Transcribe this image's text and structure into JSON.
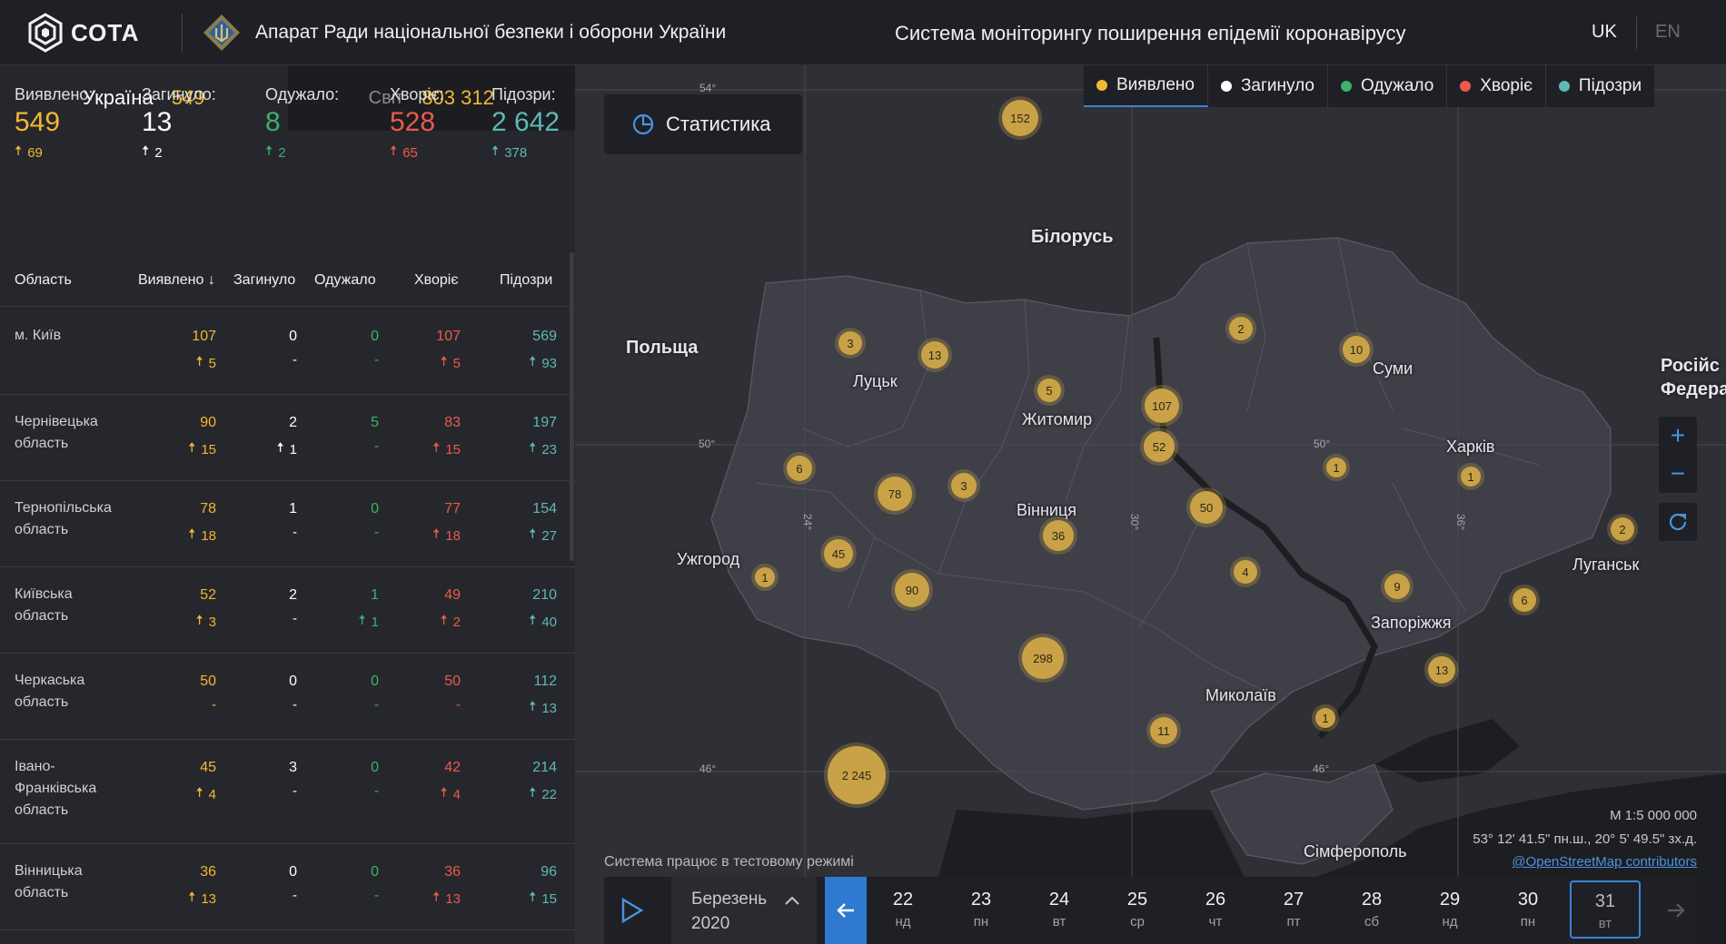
{
  "header": {
    "logo_text": "СОТА",
    "org_title": "Апарат Ради національної безпеки і оборони України",
    "system_title": "Система моніторингу поширення епідемії коронавірусу",
    "lang_uk": "UK",
    "lang_en": "EN"
  },
  "tabs": {
    "ukraine_label": "Україна",
    "ukraine_value": "549",
    "world_label": "Світ",
    "world_value": "803 312"
  },
  "summary": {
    "detected": {
      "label": "Виявлено:",
      "value": "549",
      "delta": "69"
    },
    "died": {
      "label": "Загинуло:",
      "value": "13",
      "delta": "2"
    },
    "recovered": {
      "label": "Одужало:",
      "value": "8",
      "delta": "2"
    },
    "sick": {
      "label": "Хворіє:",
      "value": "528",
      "delta": "65"
    },
    "suspected": {
      "label": "Підозри:",
      "value": "2 642",
      "delta": "378"
    }
  },
  "table": {
    "headers": [
      "Область",
      "Виявлено",
      "Загинуло",
      "Одужало",
      "Хворіє",
      "Підозри"
    ],
    "rows": [
      {
        "name": "м. Київ",
        "detected": "107",
        "detected_d": "5",
        "died": "0",
        "died_d": "-",
        "recovered": "0",
        "recovered_d": "-",
        "sick": "107",
        "sick_d": "5",
        "suspected": "569",
        "suspected_d": "93"
      },
      {
        "name": "Чернівецька область",
        "detected": "90",
        "detected_d": "15",
        "died": "2",
        "died_d": "1",
        "recovered": "5",
        "recovered_d": "-",
        "sick": "83",
        "sick_d": "15",
        "suspected": "197",
        "suspected_d": "23"
      },
      {
        "name": "Тернопільська область",
        "detected": "78",
        "detected_d": "18",
        "died": "1",
        "died_d": "-",
        "recovered": "0",
        "recovered_d": "-",
        "sick": "77",
        "sick_d": "18",
        "suspected": "154",
        "suspected_d": "27"
      },
      {
        "name": "Київська область",
        "detected": "52",
        "detected_d": "3",
        "died": "2",
        "died_d": "-",
        "recovered": "1",
        "recovered_d": "1",
        "sick": "49",
        "sick_d": "2",
        "suspected": "210",
        "suspected_d": "40"
      },
      {
        "name": "Черкаська область",
        "detected": "50",
        "detected_d": "-",
        "died": "0",
        "died_d": "-",
        "recovered": "0",
        "recovered_d": "-",
        "sick": "50",
        "sick_d": "-",
        "suspected": "112",
        "suspected_d": "13"
      },
      {
        "name": "Івано-Франківська область",
        "detected": "45",
        "detected_d": "4",
        "died": "3",
        "died_d": "-",
        "recovered": "0",
        "recovered_d": "-",
        "sick": "42",
        "sick_d": "4",
        "suspected": "214",
        "suspected_d": "22"
      },
      {
        "name": "Вінницька область",
        "detected": "36",
        "detected_d": "13",
        "died": "0",
        "died_d": "-",
        "recovered": "0",
        "recovered_d": "-",
        "sick": "36",
        "sick_d": "13",
        "suspected": "96",
        "suspected_d": "15"
      }
    ]
  },
  "map": {
    "statistics_button": "Статистика",
    "legend": [
      "Виявлено",
      "Загинуло",
      "Одужало",
      "Хворіє",
      "Підозри"
    ],
    "colors": {
      "detected": "#f2b830",
      "died": "#ffffff",
      "recovered": "#3bb26a",
      "sick": "#ec5a4a",
      "suspected": "#5fb8b4",
      "accent": "#2f79d0"
    },
    "places": [
      "Білорусь",
      "Польща",
      "Луцьк",
      "Житомир",
      "Суми",
      "Харків",
      "Вінниця",
      "Ужгород",
      "Луганськ",
      "Запоріжжя",
      "Миколаїв",
      "Сімферополь",
      "Російс Федера"
    ],
    "clusters": [
      "152",
      "3",
      "13",
      "2",
      "10",
      "5",
      "107",
      "52",
      "6",
      "78",
      "3",
      "1",
      "1",
      "2",
      "36",
      "50",
      "45",
      "1",
      "90",
      "4",
      "9",
      "6",
      "13",
      "298",
      "11",
      "1",
      "2 245"
    ],
    "grid_labels": [
      "54°",
      "50°",
      "50°",
      "46°",
      "46°",
      "24°",
      "30°",
      "36°"
    ],
    "scale": "М 1:5 000 000",
    "coords": "53° 12' 41.5\" пн.ш., 20° 5' 49.5\" зх.д.",
    "attribution": "@OpenStreetMap contributors",
    "test_mode": "Система працює в тестовому режимі"
  },
  "timeline": {
    "month": "Березень",
    "year": "2020",
    "days": [
      {
        "num": "22",
        "wd": "нд"
      },
      {
        "num": "23",
        "wd": "пн"
      },
      {
        "num": "24",
        "wd": "вт"
      },
      {
        "num": "25",
        "wd": "ср"
      },
      {
        "num": "26",
        "wd": "чт"
      },
      {
        "num": "27",
        "wd": "пт"
      },
      {
        "num": "28",
        "wd": "сб"
      },
      {
        "num": "29",
        "wd": "нд"
      },
      {
        "num": "30",
        "wd": "пн"
      },
      {
        "num": "31",
        "wd": "вт"
      }
    ],
    "selected_day": "31"
  }
}
